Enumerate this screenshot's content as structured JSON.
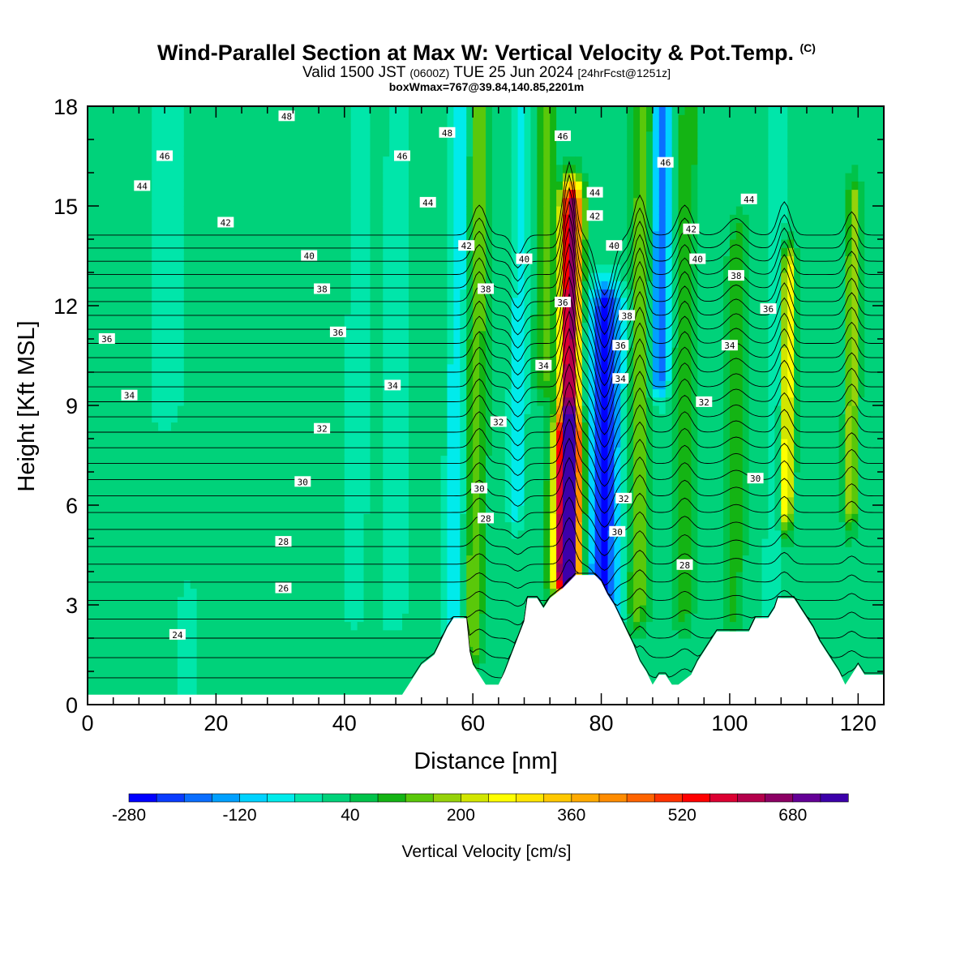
{
  "header": {
    "title": "Wind-Parallel Section at Max W: Vertical Velocity & Pot.Temp.",
    "copyright": "(C)",
    "valid_prefix": "Valid 1500 JST",
    "valid_utc": "(0600Z)",
    "valid_date": "TUE 25 Jun 2024",
    "forecast": "[24hrFcst@1251z]",
    "box_max": "boxWmax=767@39.84,140.85,2201m"
  },
  "chart_data": {
    "type": "heatmap",
    "xlabel": "Distance [nm]",
    "ylabel": "Height [Kft MSL]",
    "xlim": [
      0,
      124
    ],
    "ylim": [
      0,
      18
    ],
    "xticks": [
      "0",
      "20",
      "40",
      "60",
      "80",
      "100",
      "120"
    ],
    "yticks": [
      "0",
      "3",
      "6",
      "9",
      "12",
      "15",
      "18"
    ],
    "colorbar": {
      "title": "Vertical Velocity [cm/s]",
      "tick_labels": [
        "-280",
        "-120",
        "40",
        "200",
        "360",
        "520",
        "680"
      ],
      "range": [
        -280,
        760
      ],
      "interval": 40,
      "colors": [
        "#0000ff",
        "#0a3cff",
        "#0a6eff",
        "#00a0ff",
        "#00d2ff",
        "#00ebeb",
        "#00e6aa",
        "#00d27a",
        "#00c34a",
        "#14b414",
        "#5ac80a",
        "#96d20a",
        "#d2e600",
        "#ffff00",
        "#ffe600",
        "#ffc800",
        "#ffaa00",
        "#ff8c00",
        "#ff6400",
        "#ff3200",
        "#ff0000",
        "#dc0032",
        "#b4004b",
        "#8c0064",
        "#640096",
        "#3c00aa"
      ]
    },
    "background_velocity": 20,
    "velocity_features": [
      {
        "x": 75,
        "y_range": [
          4,
          15
        ],
        "peak": 680,
        "width_nm": 1.6
      },
      {
        "x": 75,
        "y_range": [
          4,
          8
        ],
        "peak": 340,
        "width_nm": 2.5
      },
      {
        "x": 80.5,
        "y_range": [
          3,
          12
        ],
        "peak": -260,
        "width_nm": 2.5
      },
      {
        "x": 89,
        "y_range": [
          10,
          18
        ],
        "peak": -200,
        "width_nm": 1.4
      },
      {
        "x": 86,
        "y_range": [
          3,
          18
        ],
        "peak": 160,
        "width_nm": 1.5
      },
      {
        "x": 60.5,
        "y_range": [
          2,
          18
        ],
        "peak": 160,
        "width_nm": 1.5
      },
      {
        "x": 57.5,
        "y_range": [
          2,
          18
        ],
        "peak": -80,
        "width_nm": 1.5
      },
      {
        "x": 67,
        "y_range": [
          6,
          18
        ],
        "peak": -60,
        "width_nm": 1.3
      },
      {
        "x": 71,
        "y_range": [
          10,
          18
        ],
        "peak": 140,
        "width_nm": 1.3
      },
      {
        "x": 93,
        "y_range": [
          3,
          18
        ],
        "peak": 120,
        "width_nm": 1.5
      },
      {
        "x": 109,
        "y_range": [
          6,
          13
        ],
        "peak": 300,
        "width_nm": 1.0
      },
      {
        "x": 107,
        "y_range": [
          3,
          18
        ],
        "peak": -40,
        "width_nm": 1.2
      },
      {
        "x": 119,
        "y_range": [
          6,
          15
        ],
        "peak": 200,
        "width_nm": 1.0
      },
      {
        "x": 101,
        "y_range": [
          3,
          14
        ],
        "peak": 100,
        "width_nm": 1.5
      },
      {
        "x": 12,
        "y_range": [
          9,
          18
        ],
        "peak": -20,
        "width_nm": 3.0
      },
      {
        "x": 16,
        "y_range": [
          0,
          3
        ],
        "peak": -20,
        "width_nm": 1.5
      },
      {
        "x": 42,
        "y_range": [
          3,
          18
        ],
        "peak": -20,
        "width_nm": 2.0
      },
      {
        "x": 48,
        "y_range": [
          3,
          18
        ],
        "peak": -30,
        "width_nm": 2.0
      }
    ],
    "terrain_kft": [
      [
        0,
        0.3
      ],
      [
        49,
        0.3
      ],
      [
        50,
        0.6
      ],
      [
        51,
        0.9
      ],
      [
        52,
        1.2
      ],
      [
        54,
        1.5
      ],
      [
        55,
        1.9
      ],
      [
        56,
        2.3
      ],
      [
        57,
        2.6
      ],
      [
        59,
        2.6
      ],
      [
        59.5,
        1.6
      ],
      [
        60,
        1.2
      ],
      [
        61,
        0.9
      ],
      [
        62,
        0.6
      ],
      [
        64,
        0.6
      ],
      [
        65,
        1.0
      ],
      [
        66,
        1.5
      ],
      [
        67,
        2.0
      ],
      [
        68,
        2.5
      ],
      [
        68.5,
        3.2
      ],
      [
        70,
        3.2
      ],
      [
        71,
        2.9
      ],
      [
        72,
        3.2
      ],
      [
        74,
        3.5
      ],
      [
        76,
        3.9
      ],
      [
        77,
        3.9
      ],
      [
        78,
        3.9
      ],
      [
        79,
        3.9
      ],
      [
        80,
        3.7
      ],
      [
        81,
        3.3
      ],
      [
        82,
        3.0
      ],
      [
        83,
        2.6
      ],
      [
        84,
        2.2
      ],
      [
        85,
        1.8
      ],
      [
        86,
        1.3
      ],
      [
        87,
        1.0
      ],
      [
        88,
        0.6
      ],
      [
        89,
        0.9
      ],
      [
        90,
        0.9
      ],
      [
        91,
        0.6
      ],
      [
        92,
        0.6
      ],
      [
        94,
        0.9
      ],
      [
        95,
        1.3
      ],
      [
        96,
        1.6
      ],
      [
        97,
        1.9
      ],
      [
        98,
        2.2
      ],
      [
        103,
        2.2
      ],
      [
        104,
        2.6
      ],
      [
        106,
        2.6
      ],
      [
        107,
        2.9
      ],
      [
        107.5,
        3.2
      ],
      [
        110,
        3.2
      ],
      [
        111,
        2.9
      ],
      [
        112,
        2.6
      ],
      [
        113,
        2.3
      ],
      [
        114,
        1.9
      ],
      [
        115,
        1.6
      ],
      [
        116,
        1.3
      ],
      [
        117,
        1.0
      ],
      [
        118,
        0.6
      ],
      [
        119,
        0.9
      ],
      [
        120,
        1.2
      ],
      [
        121,
        0.9
      ],
      [
        124,
        0.9
      ]
    ],
    "potential_temperature_labels": [
      {
        "x": 31,
        "y": 17.7,
        "text": "48"
      },
      {
        "x": 56,
        "y": 17.2,
        "text": "48"
      },
      {
        "x": 74,
        "y": 17.1,
        "text": "46"
      },
      {
        "x": 12,
        "y": 16.5,
        "text": "46"
      },
      {
        "x": 49,
        "y": 16.5,
        "text": "46"
      },
      {
        "x": 90,
        "y": 16.3,
        "text": "46"
      },
      {
        "x": 8.5,
        "y": 15.6,
        "text": "44"
      },
      {
        "x": 53,
        "y": 15.1,
        "text": "44"
      },
      {
        "x": 79,
        "y": 15.4,
        "text": "44"
      },
      {
        "x": 103,
        "y": 15.2,
        "text": "44"
      },
      {
        "x": 21.5,
        "y": 14.5,
        "text": "42"
      },
      {
        "x": 79,
        "y": 14.7,
        "text": "42"
      },
      {
        "x": 94,
        "y": 14.3,
        "text": "42"
      },
      {
        "x": 59,
        "y": 13.8,
        "text": "42"
      },
      {
        "x": 34.5,
        "y": 13.5,
        "text": "40"
      },
      {
        "x": 68,
        "y": 13.4,
        "text": "40"
      },
      {
        "x": 82,
        "y": 13.8,
        "text": "40"
      },
      {
        "x": 95,
        "y": 13.4,
        "text": "40"
      },
      {
        "x": 36.5,
        "y": 12.5,
        "text": "38"
      },
      {
        "x": 62,
        "y": 12.5,
        "text": "38"
      },
      {
        "x": 101,
        "y": 12.9,
        "text": "38"
      },
      {
        "x": 84,
        "y": 11.7,
        "text": "38"
      },
      {
        "x": 74,
        "y": 12.1,
        "text": "36"
      },
      {
        "x": 106,
        "y": 11.9,
        "text": "36"
      },
      {
        "x": 3,
        "y": 11.0,
        "text": "36"
      },
      {
        "x": 39,
        "y": 11.2,
        "text": "36"
      },
      {
        "x": 83,
        "y": 10.8,
        "text": "36"
      },
      {
        "x": 71,
        "y": 10.2,
        "text": "34"
      },
      {
        "x": 100,
        "y": 10.8,
        "text": "34"
      },
      {
        "x": 83,
        "y": 9.8,
        "text": "34"
      },
      {
        "x": 47.5,
        "y": 9.6,
        "text": "34"
      },
      {
        "x": 6.5,
        "y": 9.3,
        "text": "34"
      },
      {
        "x": 96,
        "y": 9.1,
        "text": "32"
      },
      {
        "x": 64,
        "y": 8.5,
        "text": "32"
      },
      {
        "x": 36.5,
        "y": 8.3,
        "text": "32"
      },
      {
        "x": 83.5,
        "y": 6.2,
        "text": "32"
      },
      {
        "x": 104,
        "y": 6.8,
        "text": "30"
      },
      {
        "x": 61,
        "y": 6.5,
        "text": "30"
      },
      {
        "x": 33.5,
        "y": 6.7,
        "text": "30"
      },
      {
        "x": 82.5,
        "y": 5.2,
        "text": "30"
      },
      {
        "x": 62,
        "y": 5.6,
        "text": "28"
      },
      {
        "x": 30.5,
        "y": 4.9,
        "text": "28"
      },
      {
        "x": 93,
        "y": 4.2,
        "text": "28"
      },
      {
        "x": 30.5,
        "y": 3.5,
        "text": "26"
      },
      {
        "x": 14,
        "y": 2.1,
        "text": "24"
      }
    ]
  }
}
